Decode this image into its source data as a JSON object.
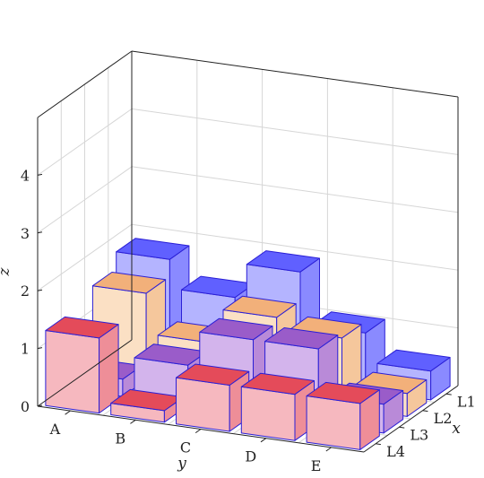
{
  "chart_data": {
    "type": "bar3d",
    "xlabel": "x",
    "ylabel": "y",
    "zlabel": "z",
    "x_categories": [
      "L1",
      "L2",
      "L3",
      "L4"
    ],
    "y_categories": [
      "A",
      "B",
      "C",
      "D",
      "E"
    ],
    "z_ticks": [
      "0",
      "1",
      "2",
      "3",
      "4"
    ],
    "zlim": [
      0,
      5
    ],
    "grid": true,
    "series": [
      {
        "x": "L1",
        "color_top": "#6060ff",
        "color_front": "#b4b4ff",
        "color_side": "#8a8aff",
        "values": [
          1.8,
          1.3,
          1.9,
          1.0,
          0.5
        ]
      },
      {
        "x": "L2",
        "color_top": "#f2b07a",
        "color_front": "#fbe0c4",
        "color_side": "#f5c79c",
        "values": [
          1.5,
          0.8,
          1.4,
          1.2,
          0.4
        ]
      },
      {
        "x": "L3",
        "color_top": "#9a5cc9",
        "color_front": "#d3b4ec",
        "color_side": "#b98ad8",
        "values": [
          0.3,
          0.7,
          1.3,
          1.3,
          0.5
        ]
      },
      {
        "x": "L4",
        "color_top": "#e44b5a",
        "color_front": "#f6b8bf",
        "color_side": "#ee8e98",
        "values": [
          1.3,
          0.2,
          0.8,
          0.8,
          0.8
        ]
      }
    ]
  }
}
